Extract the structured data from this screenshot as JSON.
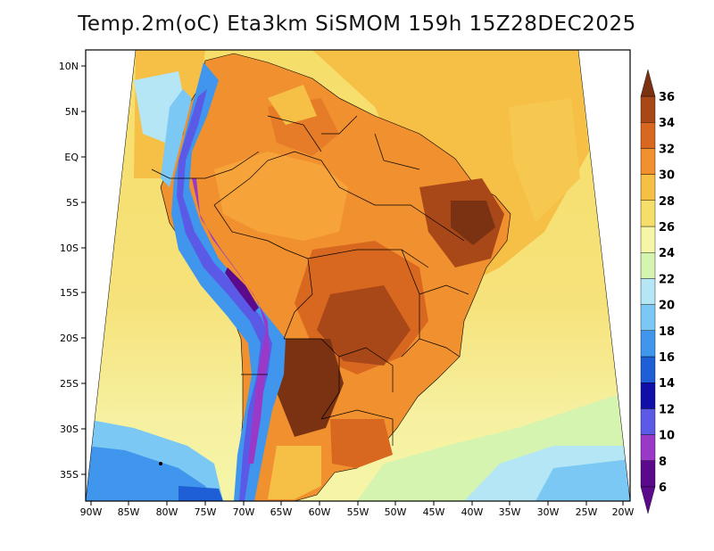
{
  "title": "Temp.2m(oC) Eta3km SiSMOM 159h 15Z28DEC2025",
  "y_ticks": [
    "10N",
    "5N",
    "EQ",
    "5S",
    "10S",
    "15S",
    "20S",
    "25S",
    "30S",
    "35S"
  ],
  "x_ticks": [
    "90W",
    "85W",
    "80W",
    "75W",
    "70W",
    "65W",
    "60W",
    "55W",
    "50W",
    "45W",
    "40W",
    "35W",
    "30W",
    "25W",
    "20W"
  ],
  "colorbar": {
    "labels": [
      "6",
      "8",
      "10",
      "12",
      "14",
      "16",
      "18",
      "20",
      "22",
      "24",
      "26",
      "28",
      "30",
      "32",
      "34",
      "36"
    ],
    "colors": [
      "#5a0a8a",
      "#9a38c8",
      "#5a5ae6",
      "#1010a8",
      "#1e5fd8",
      "#3f96ec",
      "#7cc8f4",
      "#b4e6f6",
      "#d4f4b0",
      "#f6f6a8",
      "#f6de6a",
      "#f6bf46",
      "#f0902e",
      "#d86820",
      "#a84818",
      "#7a3212"
    ]
  }
}
